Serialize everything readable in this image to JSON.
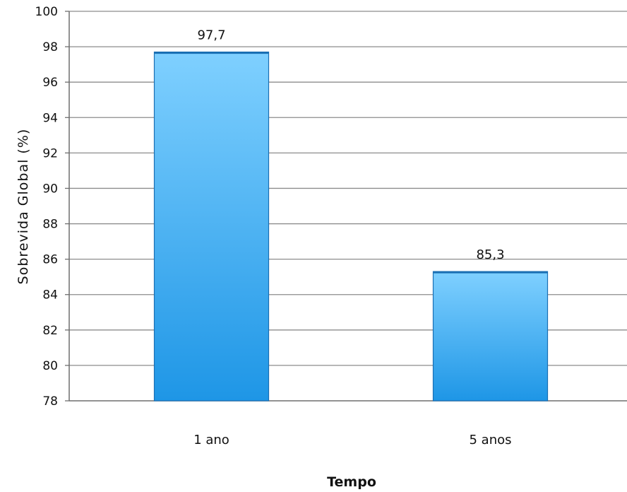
{
  "chart_data": {
    "type": "bar",
    "categories": [
      "1 ano",
      "5 anos"
    ],
    "values": [
      97.7,
      85.3
    ],
    "data_labels": [
      "97,7",
      "85,3"
    ],
    "xlabel": "Tempo",
    "ylabel": "Sobrevida Global  (%)",
    "ylim": [
      78,
      100
    ],
    "yticks": [
      78,
      80,
      82,
      84,
      86,
      88,
      90,
      92,
      94,
      96,
      98,
      100
    ],
    "grid": true,
    "legend": "none",
    "colors": {
      "bar_top": "#7fd0ff",
      "bar_bottom": "#1e96e6",
      "bar_edge": "#1a6fb3",
      "grid": "#8c8c8c",
      "axis": "#6e6e6e"
    }
  }
}
